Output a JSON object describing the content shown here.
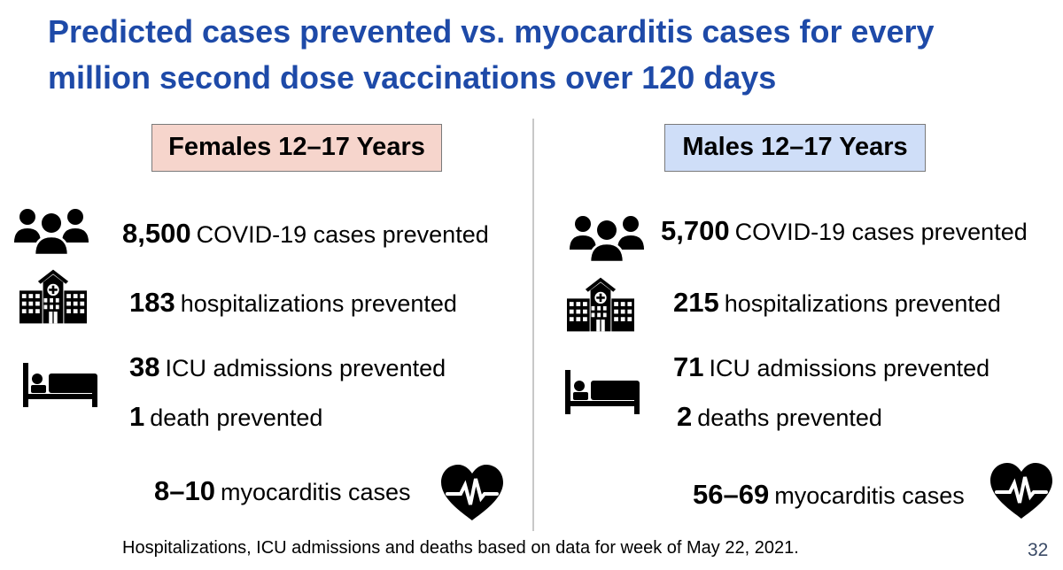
{
  "title": "Predicted cases prevented vs. myocarditis cases for every million second dose vaccinations over 120 days",
  "colors": {
    "title": "#1e4aa8",
    "female_header_bg": "#f6d5cc",
    "male_header_bg": "#cfdef8",
    "divider": "#c8c8c8"
  },
  "females": {
    "header": "Females 12–17 Years",
    "cases": {
      "value": "8,500",
      "label": "COVID-19 cases prevented",
      "icon": "people-group-icon"
    },
    "hospitalizations": {
      "value": "183",
      "label": "hospitalizations prevented",
      "icon": "hospital-icon"
    },
    "icu": {
      "value": "38",
      "label": "ICU admissions prevented",
      "icon": "hospital-bed-icon"
    },
    "deaths": {
      "value": "1",
      "label": "death prevented"
    },
    "myocarditis": {
      "value": "8–10",
      "label": "myocarditis cases",
      "icon": "heart-pulse-icon"
    }
  },
  "males": {
    "header": "Males 12–17 Years",
    "cases": {
      "value": "5,700",
      "label": "COVID-19 cases prevented",
      "icon": "people-group-icon"
    },
    "hospitalizations": {
      "value": "215",
      "label": "hospitalizations prevented",
      "icon": "hospital-icon"
    },
    "icu": {
      "value": "71",
      "label": "ICU admissions prevented",
      "icon": "hospital-bed-icon"
    },
    "deaths": {
      "value": "2",
      "label": "deaths prevented"
    },
    "myocarditis": {
      "value": "56–69",
      "label": "myocarditis cases",
      "icon": "heart-pulse-icon"
    }
  },
  "footnote": "Hospitalizations, ICU admissions and deaths based on data for week of May 22, 2021.",
  "page_number": "32"
}
